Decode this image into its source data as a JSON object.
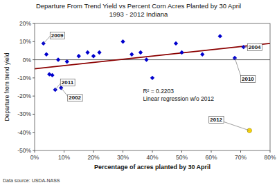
{
  "chart_data": {
    "type": "scatter",
    "title": "Departure From Trend Yield vs Percent Corn Acres Planted by 30 April\n1993 - 2012 Indiana",
    "xlabel": "Percentage of acres planted by 30 April",
    "ylabel": "Departure from trend yield",
    "source": "Data source: USDA-NASS",
    "xlim": [
      0,
      0.8
    ],
    "ylim": [
      -0.5,
      0.2
    ],
    "xticks": [
      {
        "value": 0.0,
        "label": "0%"
      },
      {
        "value": 0.1,
        "label": "10%"
      },
      {
        "value": 0.2,
        "label": "20%"
      },
      {
        "value": 0.3,
        "label": "30%"
      },
      {
        "value": 0.4,
        "label": "40%"
      },
      {
        "value": 0.5,
        "label": "50%"
      },
      {
        "value": 0.6,
        "label": "60%"
      },
      {
        "value": 0.7,
        "label": "70%"
      },
      {
        "value": 0.8,
        "label": "80%"
      }
    ],
    "yticks": [
      {
        "value": -0.5,
        "label": "-50%"
      },
      {
        "value": -0.4,
        "label": "-40%"
      },
      {
        "value": -0.3,
        "label": "-30%"
      },
      {
        "value": -0.2,
        "label": "-20%"
      },
      {
        "value": -0.1,
        "label": "-10%"
      },
      {
        "value": 0.0,
        "label": "0%"
      },
      {
        "value": 0.1,
        "label": "10%"
      },
      {
        "value": 0.2,
        "label": "20%"
      }
    ],
    "grid": false,
    "series": [
      {
        "type": "line",
        "color": "#8B0000",
        "line_style": "solid",
        "x": [
          0.0,
          0.8
        ],
        "values": [
          -0.05,
          0.09
        ]
      },
      {
        "type": "scatter",
        "color": "#0000CD",
        "marker": "diamond",
        "x": [
          0.03,
          0.04,
          0.05,
          0.06,
          0.07,
          0.08,
          0.09,
          0.11,
          0.15,
          0.18,
          0.2,
          0.22,
          0.3,
          0.33,
          0.36,
          0.38,
          0.4,
          0.48,
          0.5,
          0.57,
          0.63,
          0.68,
          0.71
        ],
        "values": [
          0.09,
          0.03,
          -0.08,
          -0.085,
          -0.165,
          0.0,
          -0.155,
          -0.01,
          0.02,
          0.04,
          0.02,
          0.04,
          0.1,
          0.03,
          0.04,
          0.0,
          -0.1,
          0.09,
          0.04,
          0.03,
          0.13,
          0.01,
          0.07
        ]
      },
      {
        "type": "scatter",
        "color": "#FFD700",
        "marker": "circle",
        "x": [
          0.73
        ],
        "values": [
          -0.39
        ]
      }
    ],
    "annotations": [
      {
        "text": "2009",
        "x": 0.03,
        "y": 0.09
      },
      {
        "text": "2011",
        "x": 0.07,
        "y": -0.165
      },
      {
        "text": "2002",
        "x": 0.09,
        "y": -0.155
      },
      {
        "text": "2004",
        "x": 0.71,
        "y": 0.07
      },
      {
        "text": "2010",
        "x": 0.68,
        "y": 0.01
      },
      {
        "text": "2012",
        "x": 0.73,
        "y": -0.39
      },
      {
        "text": "R² = 0.2203\nLinear regression w/o 2012"
      }
    ]
  }
}
